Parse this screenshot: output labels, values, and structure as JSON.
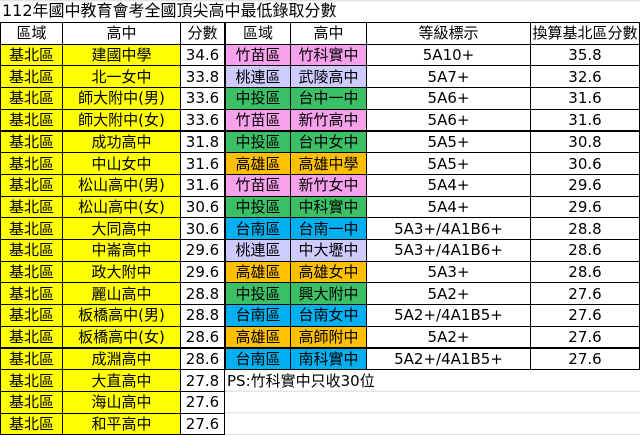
{
  "title": "112年國中教育會考全國頂尖高中最低錄取分數",
  "left_table": {
    "headers": [
      "區域",
      "高中",
      "分數"
    ],
    "row_color": "#ffff00",
    "rows": [
      [
        "基北區",
        "建國中學",
        "34.6"
      ],
      [
        "基北區",
        "北一女中",
        "33.8"
      ],
      [
        "基北區",
        "師大附中(男)",
        "33.6"
      ],
      [
        "基北區",
        "師大附中(女)",
        "33.6"
      ],
      [
        "基北區",
        "成功高中",
        "31.8"
      ],
      [
        "基北區",
        "中山女中",
        "31.6"
      ],
      [
        "基北區",
        "松山高中(男)",
        "31.6"
      ],
      [
        "基北區",
        "松山高中(女)",
        "30.6"
      ],
      [
        "基北區",
        "大同高中",
        "30.6"
      ],
      [
        "基北區",
        "中崙高中",
        "29.6"
      ],
      [
        "基北區",
        "政大附中",
        "29.6"
      ],
      [
        "基北區",
        "麗山高中",
        "28.8"
      ],
      [
        "基北區",
        "板橋高中(男)",
        "28.8"
      ],
      [
        "基北區",
        "板橋高中(女)",
        "28.6"
      ],
      [
        "基北區",
        "成淵高中",
        "28.6"
      ],
      [
        "基北區",
        "大直高中",
        "27.8"
      ],
      [
        "基北區",
        "海山高中",
        "27.6"
      ],
      [
        "基北區",
        "和平高中",
        "27.6"
      ]
    ]
  },
  "right_table": {
    "headers": [
      "區域",
      "高中",
      "等級標示",
      "換算基北區分數"
    ],
    "rows": [
      [
        "竹苗區",
        "竹科實中",
        "5A10+",
        "35.8"
      ],
      [
        "桃連區",
        "武陵高中",
        "5A7+",
        "32.6"
      ],
      [
        "中投區",
        "台中一中",
        "5A6+",
        "31.6"
      ],
      [
        "竹苗區",
        "新竹高中",
        "5A6+",
        "31.6"
      ],
      [
        "中投區",
        "台中女中",
        "5A5+",
        "30.8"
      ],
      [
        "高雄區",
        "高雄中學",
        "5A5+",
        "30.6"
      ],
      [
        "竹苗區",
        "新竹女中",
        "5A4+",
        "29.6"
      ],
      [
        "中投區",
        "中科實中",
        "5A4+",
        "29.6"
      ],
      [
        "台南區",
        "台南一中",
        "5A3+/4A1B6+",
        "28.8"
      ],
      [
        "桃連區",
        "中大壢中",
        "5A3+/4A1B6+",
        "28.6"
      ],
      [
        "高雄區",
        "高雄女中",
        "5A3+",
        "28.6"
      ],
      [
        "中投區",
        "興大附中",
        "5A2+",
        "27.6"
      ],
      [
        "台南區",
        "台南女中",
        "5A2+/4A1B5+",
        "27.6"
      ],
      [
        "高雄區",
        "高師附中",
        "5A2+",
        "27.6"
      ],
      [
        "台南區",
        "南科實中",
        "5A2+/4A1B5+",
        "27.6"
      ]
    ],
    "row_colors": [
      "#f7a1ec",
      "#ccccff",
      "#3cc065",
      "#f7a1ec",
      "#3cc065",
      "#ffc000",
      "#f7a1ec",
      "#3cc065",
      "#00b0f0",
      "#ccccff",
      "#ffc000",
      "#3cc065",
      "#00b0f0",
      "#ffc000",
      "#00b0f0"
    ]
  },
  "note": "PS:竹科實中只收30位"
}
